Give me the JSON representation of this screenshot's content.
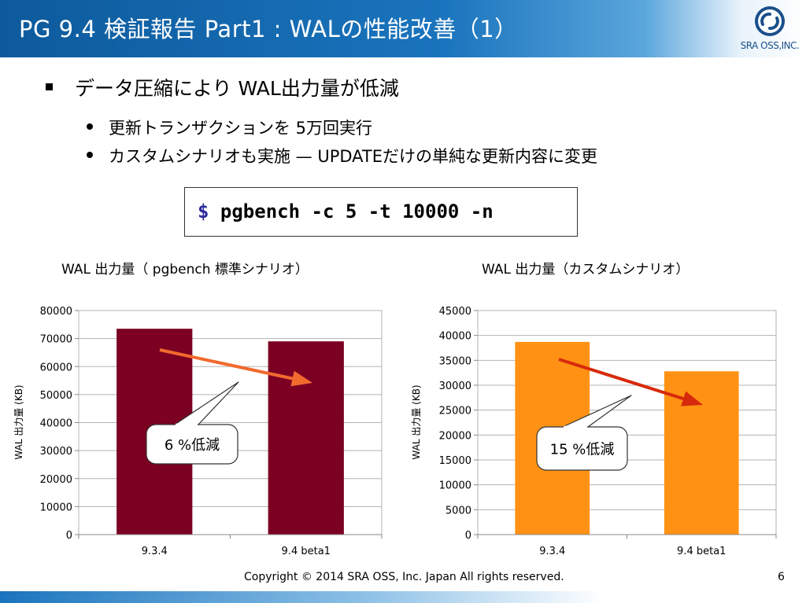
{
  "slide": {
    "title": "PG 9.4 検証報告 Part1 : WALの性能改善（1）",
    "logo_text": "SRA OSS,INC.",
    "bullet_main": "データ圧縮により WAL出力量が低減",
    "sub_bullets": [
      "更新トランザクションを 5万回実行",
      "カスタムシナリオも実施 — UPDATEだけの単純な更新内容に変更"
    ],
    "command_prompt": "$",
    "command": "pgbench -c 5 -t 10000 -n",
    "footer": "Copyright © 2014 SRA OSS, Inc. Japan All rights reserved.",
    "page_number": "6"
  },
  "chart_data": [
    {
      "type": "bar",
      "title": "WAL 出力量（ pgbench 標準シナリオ）",
      "ylabel": "WAL 出力量 (KB)",
      "categories": [
        "9.3.4",
        "9.4 beta1"
      ],
      "values": [
        73500,
        69000
      ],
      "ylim": [
        0,
        80000
      ],
      "yticks": [
        0,
        10000,
        20000,
        30000,
        40000,
        50000,
        60000,
        70000,
        80000
      ],
      "grid": true,
      "bar_color": "#7b0022",
      "arrow_color": "#f26a2e",
      "annotation": "6 %低減"
    },
    {
      "type": "bar",
      "title": "WAL 出力量（カスタムシナリオ）",
      "ylabel": "WAL 出力量 (KB)",
      "categories": [
        "9.3.4",
        "9.4 beta1"
      ],
      "values": [
        38700,
        32800
      ],
      "ylim": [
        0,
        45000
      ],
      "yticks": [
        0,
        5000,
        10000,
        15000,
        20000,
        25000,
        30000,
        35000,
        40000,
        45000
      ],
      "grid": true,
      "bar_color": "#ff9214",
      "arrow_color": "#d72a0c",
      "annotation": "15 %低減"
    }
  ]
}
